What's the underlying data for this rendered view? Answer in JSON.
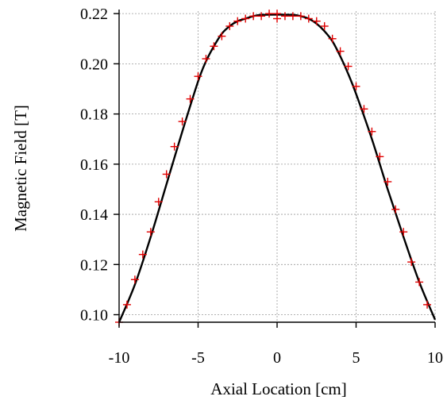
{
  "chart_data": {
    "type": "scatter",
    "title": "",
    "xlabel": "Axial Location [cm]",
    "ylabel": "Magnetic Field [T]",
    "xlim": [
      -10,
      10
    ],
    "ylim": [
      0.097,
      0.221
    ],
    "grid": true,
    "xticks": [
      -10,
      -5,
      0,
      5,
      10
    ],
    "xtick_labels": [
      "-10",
      "-5",
      "0",
      "5",
      "10"
    ],
    "yticks": [
      0.1,
      0.12,
      0.14,
      0.16,
      0.18,
      0.2,
      0.22
    ],
    "ytick_labels": [
      "0.10",
      "0.12",
      "0.14",
      "0.16",
      "0.18",
      "0.20",
      "0.22"
    ],
    "series": [
      {
        "kind": "markers",
        "marker": "plus",
        "color": "#e00000",
        "x": [
          -10.0,
          -9.5,
          -9.0,
          -8.5,
          -8.0,
          -7.5,
          -7.0,
          -6.5,
          -6.0,
          -5.5,
          -5.0,
          -4.5,
          -4.0,
          -3.5,
          -3.0,
          -2.5,
          -2.0,
          -1.5,
          -1.0,
          -0.5,
          0.0,
          0.0,
          0.5,
          1.0,
          1.5,
          2.0,
          2.5,
          3.0,
          3.5,
          4.0,
          4.5,
          5.0,
          5.5,
          6.0,
          6.5,
          7.0,
          7.5,
          8.0,
          8.5,
          9.0,
          9.5
        ],
        "y": [
          0.097,
          0.104,
          0.114,
          0.124,
          0.133,
          0.145,
          0.156,
          0.167,
          0.177,
          0.186,
          0.195,
          0.202,
          0.207,
          0.211,
          0.215,
          0.217,
          0.218,
          0.219,
          0.219,
          0.22,
          0.218,
          0.22,
          0.219,
          0.219,
          0.219,
          0.218,
          0.217,
          0.215,
          0.21,
          0.205,
          0.199,
          0.191,
          0.182,
          0.173,
          0.163,
          0.153,
          0.142,
          0.133,
          0.121,
          0.113,
          0.104
        ]
      },
      {
        "kind": "line",
        "color": "#000000",
        "x": [
          -10.0,
          -9.0,
          -8.0,
          -7.0,
          -6.0,
          -5.0,
          -4.5,
          -4.0,
          -3.5,
          -3.0,
          -2.5,
          -2.0,
          -1.5,
          -1.0,
          0.0,
          1.0,
          1.5,
          2.0,
          2.5,
          3.0,
          3.5,
          4.0,
          4.5,
          5.0,
          6.0,
          7.0,
          8.0,
          9.0,
          10.0
        ],
        "y": [
          0.097,
          0.112,
          0.131,
          0.152,
          0.173,
          0.193,
          0.201,
          0.207,
          0.212,
          0.215,
          0.217,
          0.218,
          0.219,
          0.2195,
          0.2196,
          0.2195,
          0.219,
          0.218,
          0.216,
          0.213,
          0.209,
          0.203,
          0.196,
          0.188,
          0.17,
          0.15,
          0.131,
          0.113,
          0.098
        ]
      }
    ]
  }
}
